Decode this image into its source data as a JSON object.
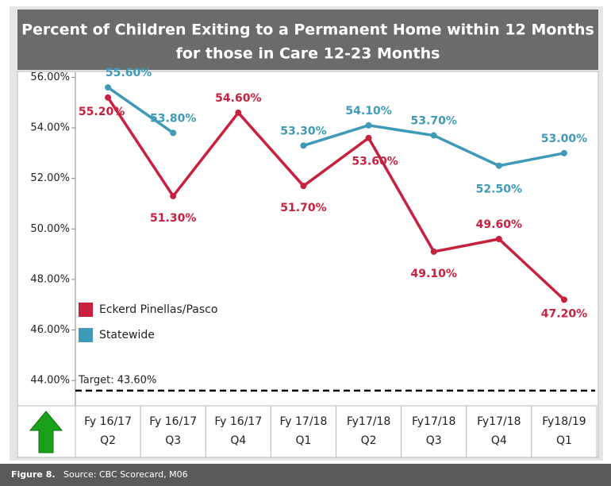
{
  "chart_data": {
    "type": "line",
    "title": [
      "Percent of Children Exiting to a Permanent Home within 12 Months",
      "for those in Care 12-23 Months"
    ],
    "categories": [
      [
        "Fy 16/17",
        "Q2"
      ],
      [
        "Fy 16/17",
        "Q3"
      ],
      [
        "Fy 16/17",
        "Q4"
      ],
      [
        "Fy 17/18",
        "Q1"
      ],
      [
        "Fy17/18",
        "Q2"
      ],
      [
        "Fy17/18",
        "Q3"
      ],
      [
        "Fy17/18",
        "Q4"
      ],
      [
        "Fy18/19",
        "Q1"
      ]
    ],
    "series": [
      {
        "name": "Eckerd Pinellas/Pasco",
        "color": "#c8203f",
        "values": [
          55.2,
          51.3,
          54.6,
          51.7,
          53.6,
          49.1,
          49.6,
          47.2
        ],
        "value_labels": [
          "55.20%",
          "51.30%",
          "54.60%",
          "51.70%",
          "53.60%",
          "49.10%",
          "49.60%",
          "47.20%"
        ]
      },
      {
        "name": "Statewide",
        "color": "#3f9ab8",
        "values": [
          55.6,
          53.8,
          null,
          53.3,
          54.1,
          53.7,
          52.5,
          53.0
        ],
        "value_labels": [
          "55.60%",
          "53.80%",
          null,
          "53.30%",
          "54.10%",
          "53.70%",
          "52.50%",
          "53.00%"
        ]
      }
    ],
    "target": {
      "value": 43.6,
      "label": "Target: 43.60%"
    },
    "ylim": [
      43,
      56.2
    ],
    "yticks": [
      {
        "value": 44,
        "label": "44.00%"
      },
      {
        "value": 46,
        "label": "46.00%"
      },
      {
        "value": 48,
        "label": "48.00%"
      },
      {
        "value": 50,
        "label": "50.00%"
      },
      {
        "value": 52,
        "label": "52.00%"
      },
      {
        "value": 54,
        "label": "54.00%"
      },
      {
        "value": 56,
        "label": "56.00%"
      }
    ],
    "legend": "lower-left",
    "footer": {
      "figure": "Figure 8.",
      "source": "Source: CBC Scorecard, M06"
    }
  }
}
